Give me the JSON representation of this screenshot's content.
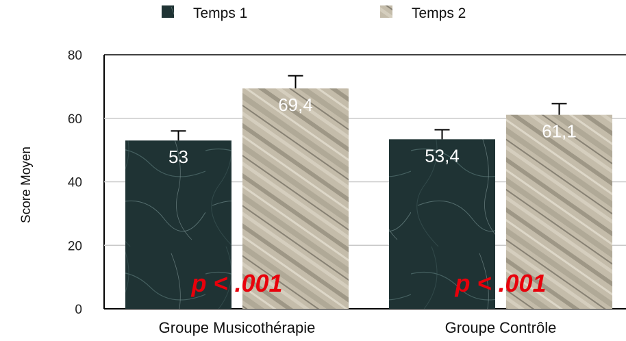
{
  "chart_data": {
    "type": "bar",
    "categories": [
      "Groupe Musicothérapie",
      "Groupe Contrôle"
    ],
    "series": [
      {
        "name": "Temps 1",
        "values": [
          53,
          53.4
        ],
        "errors": [
          3,
          3
        ],
        "labels": [
          "53",
          "53,4"
        ],
        "color": "#243a3a"
      },
      {
        "name": "Temps 2",
        "values": [
          69.4,
          61.1
        ],
        "errors": [
          4,
          3.5
        ],
        "labels": [
          "69,4",
          "61,1"
        ],
        "color": "#b9b2a0"
      }
    ],
    "ylabel": "Score Moyen",
    "xlabel": "",
    "ylim": [
      0,
      80
    ],
    "yticks": [
      "0",
      "20",
      "40",
      "60",
      "80"
    ],
    "grid": true,
    "legend": "top",
    "annotations": [
      "p < .001",
      "p < .001"
    ]
  }
}
